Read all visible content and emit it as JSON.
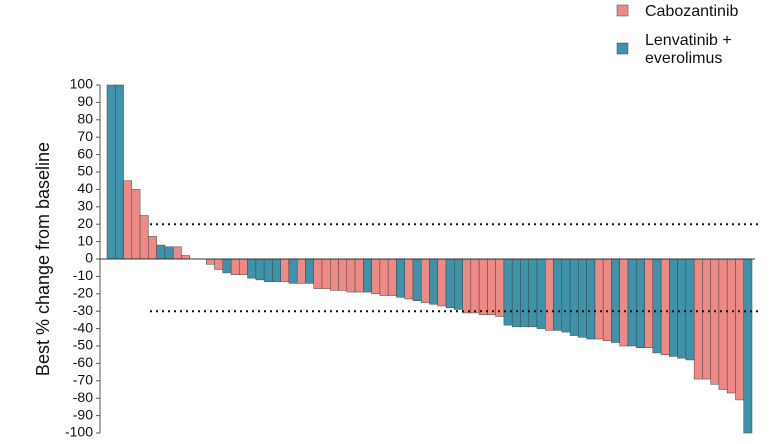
{
  "chart_data": {
    "type": "bar",
    "y_label": "Best % change from baseline",
    "ylim": [
      -100,
      100
    ],
    "yticks": [
      -100,
      -90,
      -80,
      -70,
      -60,
      -50,
      -40,
      -30,
      -20,
      -10,
      0,
      10,
      20,
      30,
      40,
      50,
      60,
      70,
      80,
      90,
      100
    ],
    "reference_lines": [
      20,
      -30
    ],
    "series": [
      {
        "name": "Cabozantinib",
        "color": "#ee8a85",
        "values": [
          null,
          null,
          45,
          40,
          25,
          13,
          null,
          null,
          7,
          2,
          0,
          0,
          -3,
          -6,
          null,
          -9,
          -9,
          null,
          null,
          null,
          null,
          -13,
          null,
          -14,
          null,
          -17,
          -17,
          -18,
          -18,
          -19,
          -19,
          null,
          -20,
          -21,
          -21,
          null,
          -23,
          null,
          -25,
          null,
          -27,
          null,
          null,
          -31,
          -31,
          -32,
          -32,
          -33,
          null,
          null,
          null,
          null,
          null,
          -41,
          null,
          null,
          null,
          null,
          null,
          -46,
          -47,
          null,
          -50,
          null,
          null,
          -51,
          null,
          -55,
          null,
          null,
          null,
          -69,
          -69,
          -72,
          -75,
          -77,
          -81,
          null
        ]
      },
      {
        "name": "Lenvatinib + everolimus",
        "color": "#3e93aa",
        "values": [
          100,
          100,
          null,
          null,
          null,
          null,
          8,
          7,
          null,
          null,
          null,
          null,
          null,
          null,
          -8,
          null,
          null,
          -11,
          -12,
          -13,
          -13,
          null,
          -14,
          null,
          -14,
          null,
          null,
          null,
          null,
          null,
          null,
          -19,
          null,
          null,
          null,
          -22,
          null,
          -24,
          null,
          -26,
          null,
          -28,
          -29,
          null,
          null,
          null,
          null,
          null,
          -38,
          -39,
          -39,
          -39,
          -40,
          null,
          -41,
          -42,
          -44,
          -45,
          -46,
          null,
          null,
          -48,
          null,
          -50,
          -51,
          null,
          -54,
          null,
          -56,
          -57,
          -58,
          null,
          null,
          null,
          null,
          null,
          null,
          -100
        ]
      }
    ]
  }
}
